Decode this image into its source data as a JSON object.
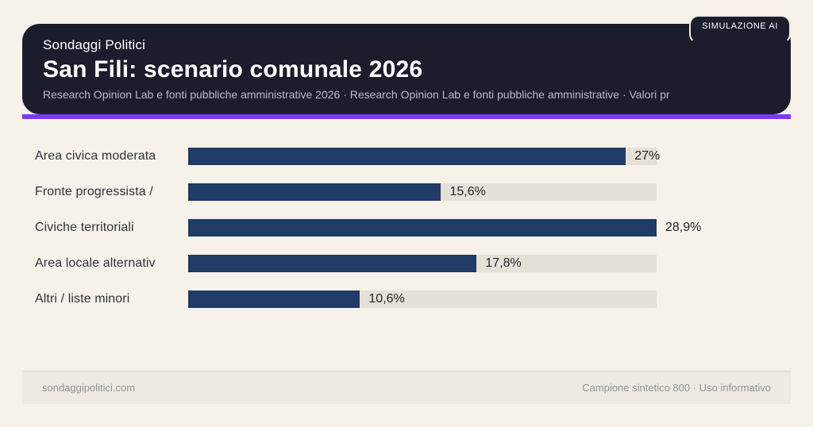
{
  "badge": {
    "label": "SIMULAZIONE AI"
  },
  "header": {
    "kicker": "Sondaggi Politici",
    "title": "San Fili: scenario comunale 2026",
    "subtitle": "Research Opinion Lab e fonti pubbliche amministrative 2026 · Research Opinion Lab e fonti pubbliche amministrative · Valori pr"
  },
  "chart_data": {
    "type": "bar",
    "orientation": "horizontal",
    "title": "San Fili: scenario comunale 2026",
    "categories": [
      "Area civica moderata",
      "Fronte progressista /",
      "Civiche territoriali",
      "Area locale alternativ",
      "Altri / liste minori"
    ],
    "values": [
      27,
      15.6,
      28.9,
      17.8,
      10.6
    ],
    "value_labels": [
      "27%",
      "15,6%",
      "28,9%",
      "17,8%",
      "10,6%"
    ],
    "xlim": [
      0,
      28.9
    ],
    "grid": false,
    "legend": false,
    "value_label_position": "right-of-bar"
  },
  "footer": {
    "left": "sondaggipolitici.com",
    "right": "Campione sintetico 800 · Uso informativo"
  },
  "colors": {
    "page_bg": "#F6F1E9",
    "card_bg": "#1B1C2C",
    "accent": "#7C3AED",
    "bar": "#1F3B66",
    "track": "#E6E1D7"
  }
}
